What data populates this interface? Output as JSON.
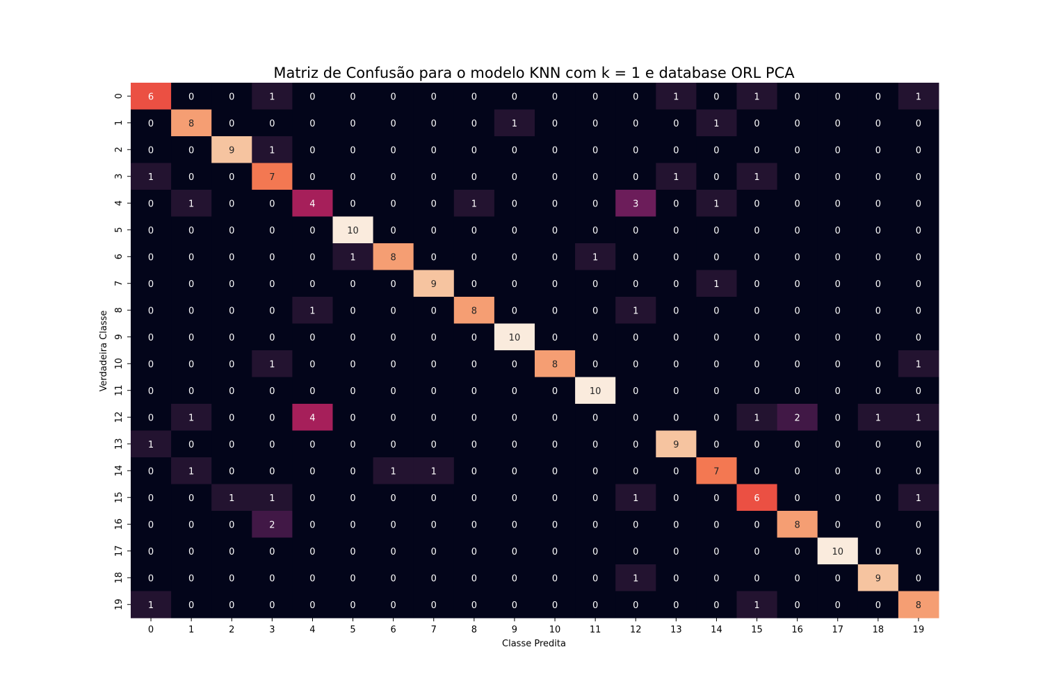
{
  "chart_data": {
    "type": "heatmap",
    "title": "Matriz de Confusão para o modelo KNN com k = 1 e database ORL PCA",
    "xlabel": "Classe Predita",
    "ylabel": "Verdadeira Classe",
    "x_categories": [
      "0",
      "1",
      "2",
      "3",
      "4",
      "5",
      "6",
      "7",
      "8",
      "9",
      "10",
      "11",
      "12",
      "13",
      "14",
      "15",
      "16",
      "17",
      "18",
      "19"
    ],
    "y_categories": [
      "0",
      "1",
      "2",
      "3",
      "4",
      "5",
      "6",
      "7",
      "8",
      "9",
      "10",
      "11",
      "12",
      "13",
      "14",
      "15",
      "16",
      "17",
      "18",
      "19"
    ],
    "value_range": [
      0,
      10
    ],
    "colorbar": false,
    "colormap": "rocket",
    "matrix": [
      [
        6,
        0,
        0,
        1,
        0,
        0,
        0,
        0,
        0,
        0,
        0,
        0,
        0,
        1,
        0,
        1,
        0,
        0,
        0,
        1
      ],
      [
        0,
        8,
        0,
        0,
        0,
        0,
        0,
        0,
        0,
        1,
        0,
        0,
        0,
        0,
        1,
        0,
        0,
        0,
        0,
        0
      ],
      [
        0,
        0,
        9,
        1,
        0,
        0,
        0,
        0,
        0,
        0,
        0,
        0,
        0,
        0,
        0,
        0,
        0,
        0,
        0,
        0
      ],
      [
        1,
        0,
        0,
        7,
        0,
        0,
        0,
        0,
        0,
        0,
        0,
        0,
        0,
        1,
        0,
        1,
        0,
        0,
        0,
        0
      ],
      [
        0,
        1,
        0,
        0,
        4,
        0,
        0,
        0,
        1,
        0,
        0,
        0,
        3,
        0,
        1,
        0,
        0,
        0,
        0,
        0
      ],
      [
        0,
        0,
        0,
        0,
        0,
        10,
        0,
        0,
        0,
        0,
        0,
        0,
        0,
        0,
        0,
        0,
        0,
        0,
        0,
        0
      ],
      [
        0,
        0,
        0,
        0,
        0,
        1,
        8,
        0,
        0,
        0,
        0,
        1,
        0,
        0,
        0,
        0,
        0,
        0,
        0,
        0
      ],
      [
        0,
        0,
        0,
        0,
        0,
        0,
        0,
        9,
        0,
        0,
        0,
        0,
        0,
        0,
        1,
        0,
        0,
        0,
        0,
        0
      ],
      [
        0,
        0,
        0,
        0,
        1,
        0,
        0,
        0,
        8,
        0,
        0,
        0,
        1,
        0,
        0,
        0,
        0,
        0,
        0,
        0
      ],
      [
        0,
        0,
        0,
        0,
        0,
        0,
        0,
        0,
        0,
        10,
        0,
        0,
        0,
        0,
        0,
        0,
        0,
        0,
        0,
        0
      ],
      [
        0,
        0,
        0,
        1,
        0,
        0,
        0,
        0,
        0,
        0,
        8,
        0,
        0,
        0,
        0,
        0,
        0,
        0,
        0,
        1
      ],
      [
        0,
        0,
        0,
        0,
        0,
        0,
        0,
        0,
        0,
        0,
        0,
        10,
        0,
        0,
        0,
        0,
        0,
        0,
        0,
        0
      ],
      [
        0,
        1,
        0,
        0,
        4,
        0,
        0,
        0,
        0,
        0,
        0,
        0,
        0,
        0,
        0,
        1,
        2,
        0,
        1,
        1
      ],
      [
        1,
        0,
        0,
        0,
        0,
        0,
        0,
        0,
        0,
        0,
        0,
        0,
        0,
        9,
        0,
        0,
        0,
        0,
        0,
        0
      ],
      [
        0,
        1,
        0,
        0,
        0,
        0,
        1,
        1,
        0,
        0,
        0,
        0,
        0,
        0,
        7,
        0,
        0,
        0,
        0,
        0
      ],
      [
        0,
        0,
        1,
        1,
        0,
        0,
        0,
        0,
        0,
        0,
        0,
        0,
        1,
        0,
        0,
        6,
        0,
        0,
        0,
        1
      ],
      [
        0,
        0,
        0,
        2,
        0,
        0,
        0,
        0,
        0,
        0,
        0,
        0,
        0,
        0,
        0,
        0,
        8,
        0,
        0,
        0
      ],
      [
        0,
        0,
        0,
        0,
        0,
        0,
        0,
        0,
        0,
        0,
        0,
        0,
        0,
        0,
        0,
        0,
        0,
        10,
        0,
        0
      ],
      [
        0,
        0,
        0,
        0,
        0,
        0,
        0,
        0,
        0,
        0,
        0,
        0,
        1,
        0,
        0,
        0,
        0,
        0,
        9,
        0
      ],
      [
        1,
        0,
        0,
        0,
        0,
        0,
        0,
        0,
        0,
        0,
        0,
        0,
        0,
        0,
        0,
        1,
        0,
        0,
        0,
        8
      ]
    ]
  }
}
